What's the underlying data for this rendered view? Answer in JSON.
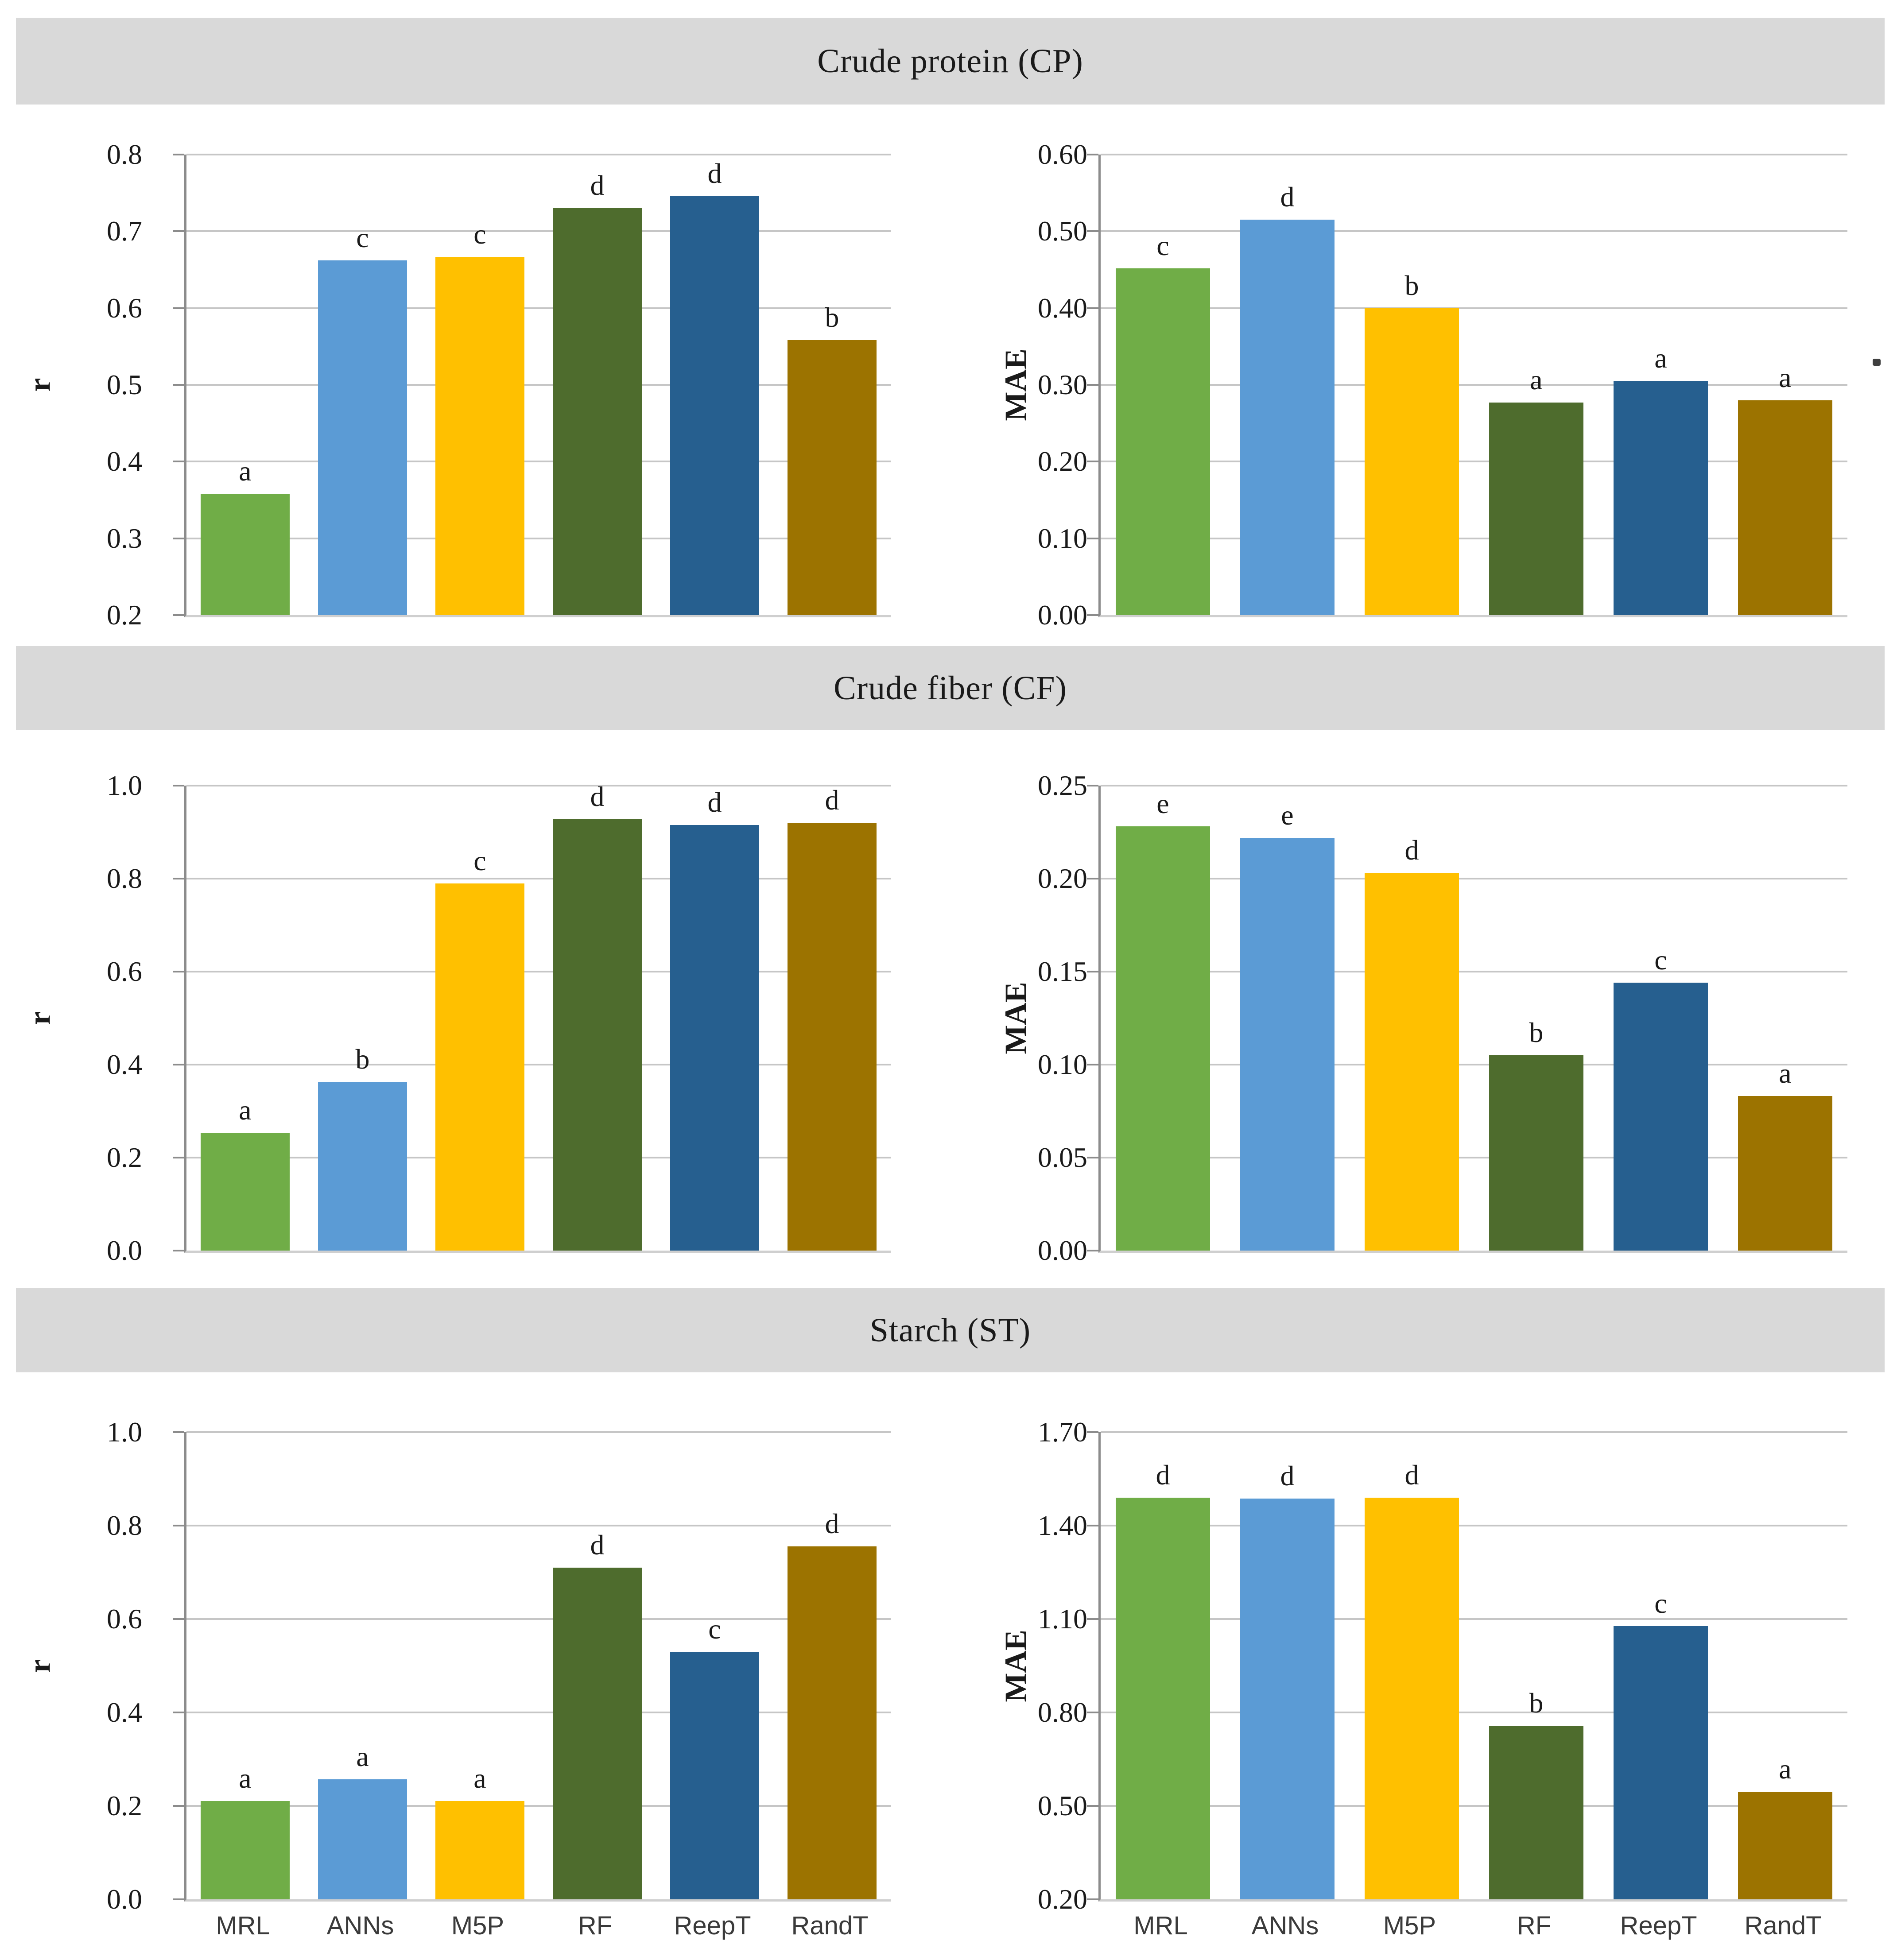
{
  "sections": [
    {
      "title": "Crude protein (CP)"
    },
    {
      "title": "Crude fiber (CF)"
    },
    {
      "title": "Starch (ST)"
    }
  ],
  "categories": [
    "MRL",
    "ANNs",
    "M5P",
    "RF",
    "ReepT",
    "RandT"
  ],
  "bar_colors": [
    "#70AD47",
    "#5B9BD5",
    "#FFC000",
    "#4E6C2D",
    "#265F8F",
    "#9C7300"
  ],
  "style_colors": {
    "band_background": "#D9D9D9",
    "gridline": "#C6C6C6",
    "y_axis_line": "#8C8C8C",
    "x_axis_line": "#CFCFCF",
    "text": "#1a1a1a",
    "category_text": "#3a3a3a"
  },
  "chart_data": [
    {
      "type": "bar",
      "section": "Crude protein (CP)",
      "panel": "left",
      "ylabel": "r",
      "ymin": 0.2,
      "ymax": 0.8,
      "ticks": [
        0.2,
        0.3,
        0.4,
        0.5,
        0.6,
        0.7,
        0.8
      ],
      "tick_labels": [
        "0.2",
        "0.3",
        "0.4",
        "0.5",
        "0.6",
        "0.7",
        "0.8"
      ],
      "categories": [
        "MRL",
        "ANNs",
        "M5P",
        "RF",
        "ReepT",
        "RandT"
      ],
      "values": [
        0.358,
        0.662,
        0.667,
        0.73,
        0.746,
        0.558
      ],
      "letters": [
        "a",
        "c",
        "c",
        "d",
        "d",
        "b"
      ],
      "grid": true,
      "legend": "none",
      "show_x_labels": false
    },
    {
      "type": "bar",
      "section": "Crude protein (CP)",
      "panel": "right",
      "ylabel": "MAE",
      "ymin": 0.0,
      "ymax": 0.6,
      "ticks": [
        0.0,
        0.1,
        0.2,
        0.3,
        0.4,
        0.5,
        0.6
      ],
      "tick_labels": [
        "0.00",
        "0.10",
        "0.20",
        "0.30",
        "0.40",
        "0.50",
        "0.60"
      ],
      "categories": [
        "MRL",
        "ANNs",
        "M5P",
        "RF",
        "ReepT",
        "RandT"
      ],
      "values": [
        0.452,
        0.515,
        0.4,
        0.277,
        0.305,
        0.28
      ],
      "letters": [
        "c",
        "d",
        "b",
        "a",
        "a",
        "a"
      ],
      "grid": true,
      "legend": "none",
      "show_x_labels": false
    },
    {
      "type": "bar",
      "section": "Crude fiber (CF)",
      "panel": "left",
      "ylabel": "r",
      "ymin": 0.0,
      "ymax": 1.0,
      "ticks": [
        0.0,
        0.2,
        0.4,
        0.6,
        0.8,
        1.0
      ],
      "tick_labels": [
        "0.0",
        "0.2",
        "0.4",
        "0.6",
        "0.8",
        "1.0"
      ],
      "categories": [
        "MRL",
        "ANNs",
        "M5P",
        "RF",
        "ReepT",
        "RandT"
      ],
      "values": [
        0.253,
        0.363,
        0.79,
        0.928,
        0.915,
        0.92
      ],
      "letters": [
        "a",
        "b",
        "c",
        "d",
        "d",
        "d"
      ],
      "grid": true,
      "legend": "none",
      "show_x_labels": false
    },
    {
      "type": "bar",
      "section": "Crude fiber (CF)",
      "panel": "right",
      "ylabel": "MAE",
      "ymin": 0.0,
      "ymax": 0.25,
      "ticks": [
        0.0,
        0.05,
        0.1,
        0.15,
        0.2,
        0.25
      ],
      "tick_labels": [
        "0.00",
        "0.05",
        "0.10",
        "0.15",
        "0.20",
        "0.25"
      ],
      "categories": [
        "MRL",
        "ANNs",
        "M5P",
        "RF",
        "ReepT",
        "RandT"
      ],
      "values": [
        0.228,
        0.222,
        0.203,
        0.105,
        0.144,
        0.083
      ],
      "letters": [
        "e",
        "e",
        "d",
        "b",
        "c",
        "a"
      ],
      "grid": true,
      "legend": "none",
      "show_x_labels": false
    },
    {
      "type": "bar",
      "section": "Starch (ST)",
      "panel": "left",
      "ylabel": "r",
      "ymin": 0.0,
      "ymax": 1.0,
      "ticks": [
        0.0,
        0.2,
        0.4,
        0.6,
        0.8,
        1.0
      ],
      "tick_labels": [
        "0.0",
        "0.2",
        "0.4",
        "0.6",
        "0.8",
        "1.0"
      ],
      "categories": [
        "MRL",
        "ANNs",
        "M5P",
        "RF",
        "ReepT",
        "RandT"
      ],
      "values": [
        0.21,
        0.257,
        0.21,
        0.71,
        0.53,
        0.755
      ],
      "letters": [
        "a",
        "a",
        "a",
        "d",
        "c",
        "d"
      ],
      "grid": true,
      "legend": "none",
      "show_x_labels": true
    },
    {
      "type": "bar",
      "section": "Starch (ST)",
      "panel": "right",
      "ylabel": "MAE",
      "ymin": 0.2,
      "ymax": 1.7,
      "ticks": [
        0.2,
        0.5,
        0.8,
        1.1,
        1.4,
        1.7
      ],
      "tick_labels": [
        "0.20",
        "0.50",
        "0.80",
        "1.10",
        "1.40",
        "1.70"
      ],
      "categories": [
        "MRL",
        "ANNs",
        "M5P",
        "RF",
        "ReepT",
        "RandT"
      ],
      "values": [
        1.49,
        1.487,
        1.49,
        0.757,
        1.077,
        0.545
      ],
      "letters": [
        "d",
        "d",
        "d",
        "b",
        "c",
        "a"
      ],
      "grid": true,
      "legend": "none",
      "show_x_labels": true
    }
  ]
}
